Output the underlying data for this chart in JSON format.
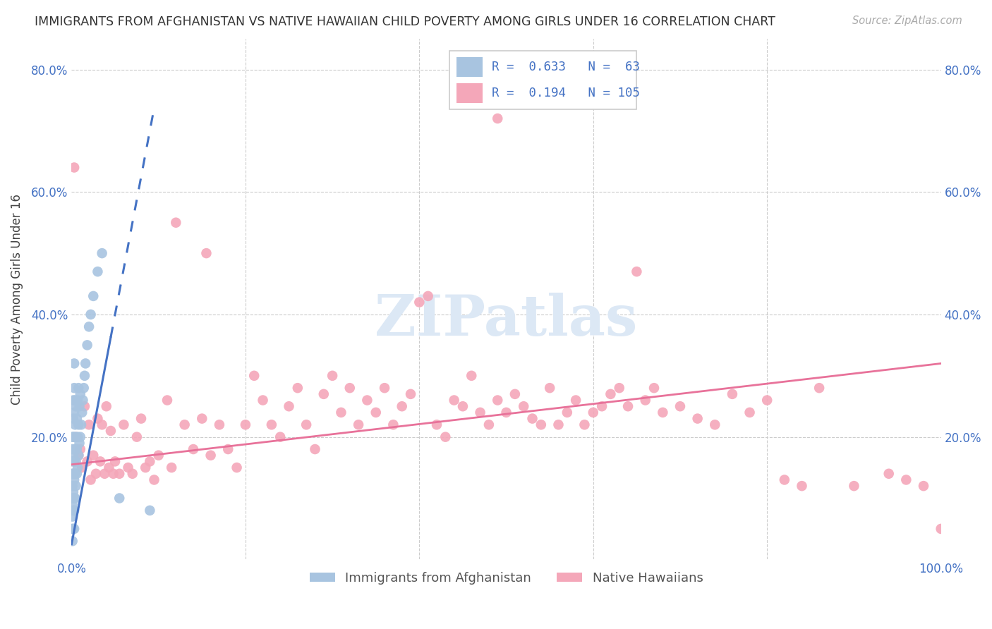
{
  "title": "IMMIGRANTS FROM AFGHANISTAN VS NATIVE HAWAIIAN CHILD POVERTY AMONG GIRLS UNDER 16 CORRELATION CHART",
  "source": "Source: ZipAtlas.com",
  "ylabel": "Child Poverty Among Girls Under 16",
  "xlim": [
    0,
    1.0
  ],
  "ylim": [
    0,
    0.85
  ],
  "legend_label1": "Immigrants from Afghanistan",
  "legend_label2": "Native Hawaiians",
  "r1": 0.633,
  "n1": 63,
  "r2": 0.194,
  "n2": 105,
  "color1": "#a8c4e0",
  "color2": "#f4a7b9",
  "line_color1": "#4472c4",
  "line_color2": "#e8729a",
  "watermark": "ZIPatlas",
  "watermark_color": "#dce8f5",
  "title_color": "#333333",
  "label_color": "#4472c4",
  "blue_line_x0": 0.0,
  "blue_line_y0": 0.025,
  "blue_line_slope": 7.5,
  "pink_line_x0": 0.0,
  "pink_line_y0": 0.155,
  "pink_line_slope": 0.165,
  "scatter1_x": [
    0.001,
    0.001,
    0.001,
    0.001,
    0.001,
    0.001,
    0.001,
    0.001,
    0.001,
    0.001,
    0.002,
    0.002,
    0.002,
    0.002,
    0.002,
    0.002,
    0.002,
    0.002,
    0.003,
    0.003,
    0.003,
    0.003,
    0.003,
    0.003,
    0.003,
    0.003,
    0.003,
    0.004,
    0.004,
    0.004,
    0.004,
    0.004,
    0.005,
    0.005,
    0.005,
    0.005,
    0.006,
    0.006,
    0.006,
    0.007,
    0.007,
    0.007,
    0.008,
    0.008,
    0.008,
    0.009,
    0.009,
    0.01,
    0.01,
    0.011,
    0.012,
    0.013,
    0.014,
    0.015,
    0.016,
    0.018,
    0.02,
    0.022,
    0.025,
    0.03,
    0.035,
    0.055,
    0.09
  ],
  "scatter1_y": [
    0.03,
    0.05,
    0.07,
    0.09,
    0.1,
    0.12,
    0.14,
    0.16,
    0.18,
    0.2,
    0.05,
    0.08,
    0.11,
    0.14,
    0.17,
    0.2,
    0.23,
    0.26,
    0.05,
    0.08,
    0.1,
    0.13,
    0.16,
    0.2,
    0.24,
    0.28,
    0.32,
    0.1,
    0.14,
    0.18,
    0.22,
    0.26,
    0.12,
    0.16,
    0.2,
    0.25,
    0.14,
    0.18,
    0.23,
    0.15,
    0.2,
    0.26,
    0.17,
    0.22,
    0.28,
    0.19,
    0.25,
    0.2,
    0.27,
    0.22,
    0.24,
    0.26,
    0.28,
    0.3,
    0.32,
    0.35,
    0.38,
    0.4,
    0.43,
    0.47,
    0.5,
    0.1,
    0.08
  ],
  "scatter2_x": [
    0.003,
    0.005,
    0.008,
    0.01,
    0.012,
    0.015,
    0.018,
    0.02,
    0.022,
    0.025,
    0.028,
    0.03,
    0.033,
    0.035,
    0.038,
    0.04,
    0.043,
    0.045,
    0.048,
    0.05,
    0.055,
    0.06,
    0.065,
    0.07,
    0.075,
    0.08,
    0.085,
    0.09,
    0.095,
    0.1,
    0.11,
    0.115,
    0.12,
    0.13,
    0.14,
    0.15,
    0.155,
    0.16,
    0.17,
    0.18,
    0.19,
    0.2,
    0.21,
    0.22,
    0.23,
    0.24,
    0.25,
    0.26,
    0.27,
    0.28,
    0.29,
    0.3,
    0.31,
    0.32,
    0.33,
    0.34,
    0.35,
    0.36,
    0.37,
    0.38,
    0.39,
    0.4,
    0.41,
    0.42,
    0.43,
    0.44,
    0.45,
    0.46,
    0.47,
    0.48,
    0.49,
    0.5,
    0.51,
    0.52,
    0.53,
    0.54,
    0.55,
    0.56,
    0.57,
    0.58,
    0.59,
    0.6,
    0.61,
    0.62,
    0.63,
    0.64,
    0.65,
    0.66,
    0.67,
    0.68,
    0.7,
    0.72,
    0.74,
    0.76,
    0.78,
    0.8,
    0.82,
    0.84,
    0.86,
    0.9,
    0.94,
    0.96,
    0.98,
    1.0,
    0.49
  ],
  "scatter2_y": [
    0.64,
    0.2,
    0.17,
    0.18,
    0.15,
    0.25,
    0.16,
    0.22,
    0.13,
    0.17,
    0.14,
    0.23,
    0.16,
    0.22,
    0.14,
    0.25,
    0.15,
    0.21,
    0.14,
    0.16,
    0.14,
    0.22,
    0.15,
    0.14,
    0.2,
    0.23,
    0.15,
    0.16,
    0.13,
    0.17,
    0.26,
    0.15,
    0.55,
    0.22,
    0.18,
    0.23,
    0.5,
    0.17,
    0.22,
    0.18,
    0.15,
    0.22,
    0.3,
    0.26,
    0.22,
    0.2,
    0.25,
    0.28,
    0.22,
    0.18,
    0.27,
    0.3,
    0.24,
    0.28,
    0.22,
    0.26,
    0.24,
    0.28,
    0.22,
    0.25,
    0.27,
    0.42,
    0.43,
    0.22,
    0.2,
    0.26,
    0.25,
    0.3,
    0.24,
    0.22,
    0.26,
    0.24,
    0.27,
    0.25,
    0.23,
    0.22,
    0.28,
    0.22,
    0.24,
    0.26,
    0.22,
    0.24,
    0.25,
    0.27,
    0.28,
    0.25,
    0.47,
    0.26,
    0.28,
    0.24,
    0.25,
    0.23,
    0.22,
    0.27,
    0.24,
    0.26,
    0.13,
    0.12,
    0.28,
    0.12,
    0.14,
    0.13,
    0.12,
    0.05,
    0.72
  ]
}
